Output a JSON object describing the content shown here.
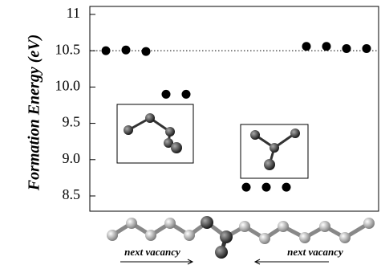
{
  "chart_data": {
    "type": "scatter",
    "y_label": "Formation Energy (eV)",
    "categories": [
      null,
      null,
      null,
      null,
      null,
      null,
      null,
      null,
      null,
      null,
      null,
      null,
      null,
      null
    ],
    "values": [
      10.5,
      10.51,
      10.49,
      9.9,
      9.9,
      null,
      null,
      8.62,
      8.62,
      8.62,
      10.56,
      10.56,
      10.53,
      10.53
    ],
    "color": "#000000",
    "ylim": [
      8.29,
      11.11
    ],
    "yticks": [
      {
        "value": 8.5,
        "label": "8.5"
      },
      {
        "value": 9,
        "label": "9.0"
      },
      {
        "value": 9.5,
        "label": "9.5"
      },
      {
        "value": 10,
        "label": "10.0"
      },
      {
        "value": 10.5,
        "label": "10.5"
      },
      {
        "value": 11,
        "label": "11"
      }
    ],
    "hline": 10.5,
    "annotations": [
      "next vacancy",
      "next vacancy"
    ]
  }
}
